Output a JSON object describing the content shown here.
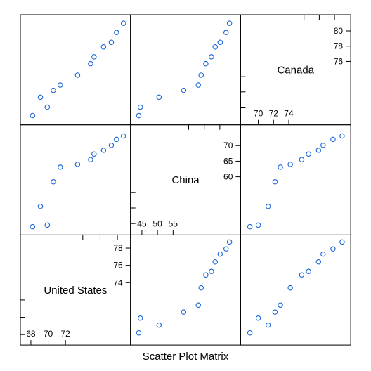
{
  "chart_data": {
    "type": "scatter",
    "title": "Scatter Plot Matrix",
    "point_color": "#1a66d9",
    "variables": [
      {
        "name": "United States",
        "range": [
          67.6,
          78.7
        ],
        "ticks_low": [
          68,
          70,
          72
        ],
        "ticks_high": [
          74,
          76,
          78
        ],
        "values": [
          68.2,
          69.1,
          69.9,
          70.6,
          71.4,
          73.4,
          74.9,
          75.3,
          76.4,
          77.3,
          77.9,
          78.7
        ]
      },
      {
        "name": "China",
        "range": [
          43.6,
          74.4
        ],
        "ticks_low": [
          45,
          50,
          55
        ],
        "ticks_high": [
          60,
          65,
          70
        ],
        "values": [
          44.0,
          50.5,
          44.5,
          58.4,
          63.1,
          64.0,
          65.5,
          67.3,
          68.5,
          70.1,
          72.0,
          73.1
        ]
      },
      {
        "name": "Canada",
        "range": [
          68.6,
          81.2
        ],
        "ticks_low": [
          70,
          72,
          74
        ],
        "ticks_high": [
          76,
          78,
          80
        ],
        "values": [
          68.9,
          71.3,
          70.0,
          72.2,
          72.9,
          74.2,
          75.7,
          76.6,
          77.9,
          78.5,
          79.8,
          81.0
        ]
      }
    ]
  }
}
